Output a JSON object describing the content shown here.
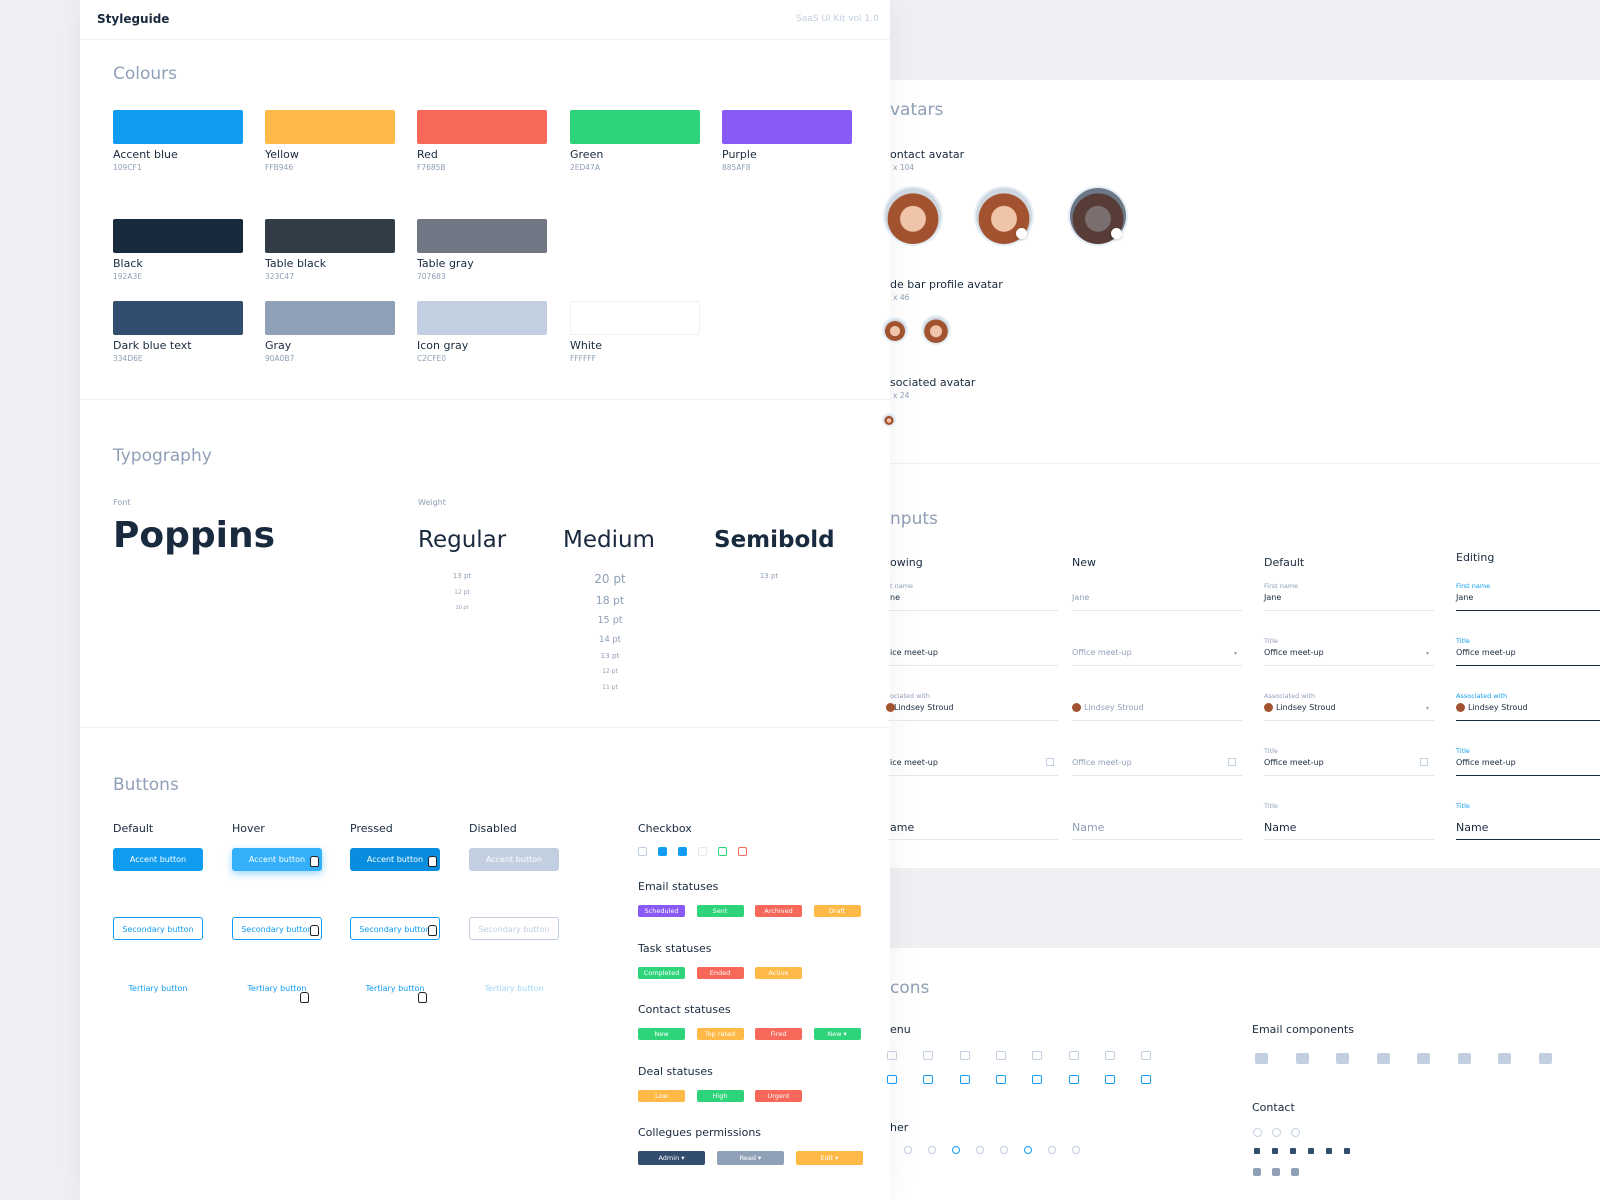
{
  "header": {
    "title": "Styleguide",
    "subtitle": "SaaS UI Kit vol 1.0"
  },
  "colours": {
    "title": "Colours",
    "swatches": [
      {
        "name": "Accent blue",
        "hex": "109CF1",
        "color": "#109CF1"
      },
      {
        "name": "Yellow",
        "hex": "FFB946",
        "color": "#FFB946"
      },
      {
        "name": "Red",
        "hex": "F7685B",
        "color": "#F7685B"
      },
      {
        "name": "Green",
        "hex": "2ED47A",
        "color": "#2ED47A"
      },
      {
        "name": "Purple",
        "hex": "885AF8",
        "color": "#885AF8"
      },
      {
        "name": "Black",
        "hex": "192A3E",
        "color": "#192A3E"
      },
      {
        "name": "Table black",
        "hex": "323C47",
        "color": "#323C47"
      },
      {
        "name": "Table gray",
        "hex": "707683",
        "color": "#707683"
      },
      {
        "name": "Dark blue text",
        "hex": "334D6E",
        "color": "#334D6E"
      },
      {
        "name": "Gray",
        "hex": "90A0B7",
        "color": "#90A0B7"
      },
      {
        "name": "Icon gray",
        "hex": "C2CFE0",
        "color": "#C2CFE0"
      },
      {
        "name": "White",
        "hex": "FFFFFF",
        "color": "#FFFFFF"
      }
    ]
  },
  "typography": {
    "title": "Typography",
    "font_label": "Font",
    "font": "Poppins",
    "weight_label": "Weight",
    "weights": [
      {
        "name": "Regular",
        "sizes": [
          "13 pt",
          "12 pt",
          "10 pt"
        ]
      },
      {
        "name": "Medium",
        "sizes": [
          "20 pt",
          "18 pt",
          "15 pt",
          "14 pt",
          "13 pt",
          "12 pt",
          "11 pt"
        ]
      },
      {
        "name": "Semibold",
        "sizes": [
          "13 pt"
        ]
      }
    ]
  },
  "buttons": {
    "title": "Buttons",
    "states": [
      "Default",
      "Hover",
      "Pressed",
      "Disabled"
    ],
    "accent": "Accent button",
    "secondary": "Secondary button",
    "tertiary": "Tertiary button"
  },
  "checkbox": {
    "title": "Checkbox"
  },
  "statuses": [
    {
      "title": "Email statuses",
      "items": [
        {
          "label": "Scheduled",
          "color": "#885AF8"
        },
        {
          "label": "Sent",
          "color": "#2ED47A"
        },
        {
          "label": "Archived",
          "color": "#F7685B"
        },
        {
          "label": "Draft",
          "color": "#FFB946"
        }
      ]
    },
    {
      "title": "Task statuses",
      "items": [
        {
          "label": "Completed",
          "color": "#2ED47A"
        },
        {
          "label": "Ended",
          "color": "#F7685B"
        },
        {
          "label": "Active",
          "color": "#FFB946"
        }
      ]
    },
    {
      "title": "Contact statuses",
      "items": [
        {
          "label": "New",
          "color": "#2ED47A"
        },
        {
          "label": "Top rated",
          "color": "#FFB946"
        },
        {
          "label": "Fired",
          "color": "#F7685B"
        },
        {
          "label": "New",
          "color": "#2ED47A",
          "dropdown": true
        }
      ]
    },
    {
      "title": "Deal statuses",
      "items": [
        {
          "label": "Low",
          "color": "#FFB946"
        },
        {
          "label": "High",
          "color": "#2ED47A"
        },
        {
          "label": "Urgent",
          "color": "#F7685B"
        }
      ]
    },
    {
      "title": "Collegues permissions",
      "items": [
        {
          "label": "Admin",
          "color": "#334D6E",
          "dropdown": true
        },
        {
          "label": "Read",
          "color": "#90A0B7",
          "dropdown": true
        },
        {
          "label": "Edit",
          "color": "#FFB946",
          "dropdown": true
        }
      ]
    }
  ],
  "avatars": {
    "title": "vatars",
    "groups": [
      {
        "name": "ontact avatar",
        "size": "x 104"
      },
      {
        "name": "de bar profile avatar",
        "size": "x 46"
      },
      {
        "name": "sociated avatar",
        "size": "x 24"
      }
    ]
  },
  "inputs": {
    "title": "nputs",
    "columns": [
      {
        "name": "owing",
        "fields": [
          {
            "label": "t name",
            "value": "ne"
          },
          {
            "value": "ice meet-up"
          },
          {
            "label": "ociated with",
            "value": "Lindsey Stroud"
          },
          {
            "value": "ice meet-up"
          },
          {
            "value": "ame"
          }
        ]
      },
      {
        "name": "New",
        "fields": [
          {
            "value": "Jane"
          },
          {
            "value": "Office meet-up"
          },
          {
            "value": "Lindsey Stroud"
          },
          {
            "value": "Office meet-up"
          },
          {
            "value": "Name"
          }
        ]
      },
      {
        "name": "Default",
        "fields": [
          {
            "label": "First name",
            "value": "Jane"
          },
          {
            "label": "Title",
            "value": "Office meet-up"
          },
          {
            "label": "Associated with",
            "value": "Lindsey Stroud"
          },
          {
            "label": "Title",
            "value": "Office meet-up"
          },
          {
            "label": "Title",
            "value": "Name"
          }
        ]
      },
      {
        "name": "Editing",
        "fields": [
          {
            "label": "First name",
            "value": "Jane"
          },
          {
            "label": "Title",
            "value": "Office meet-up"
          },
          {
            "label": "Associated with",
            "value": "Lindsey Stroud"
          },
          {
            "label": "Title",
            "value": "Office meet-up"
          },
          {
            "label": "Title",
            "value": "Name"
          }
        ]
      }
    ]
  },
  "icons": {
    "title": "cons",
    "sections": [
      "enu",
      "her",
      "Email components",
      "Contact"
    ]
  }
}
